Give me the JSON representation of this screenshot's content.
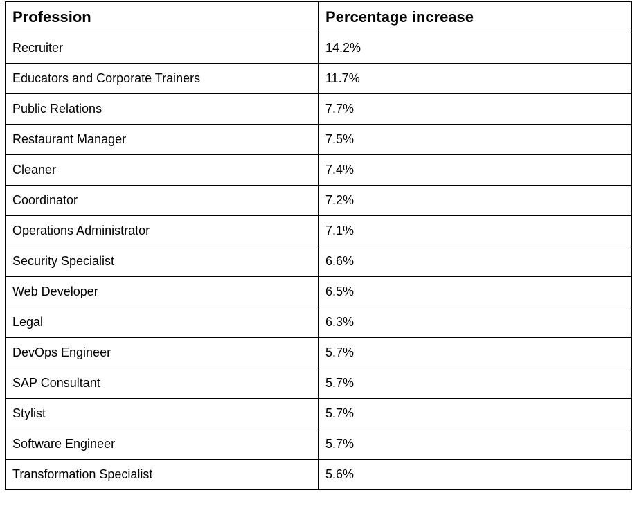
{
  "table": {
    "headers": [
      "Profession",
      "Percentage increase"
    ],
    "rows": [
      [
        "Recruiter",
        "14.2%"
      ],
      [
        "Educators and Corporate Trainers",
        "11.7%"
      ],
      [
        "Public Relations",
        "7.7%"
      ],
      [
        "Restaurant Manager",
        "7.5%"
      ],
      [
        "Cleaner",
        "7.4%"
      ],
      [
        "Coordinator",
        "7.2%"
      ],
      [
        "Operations Administrator",
        "7.1%"
      ],
      [
        "Security Specialist",
        "6.6%"
      ],
      [
        "Web Developer",
        "6.5%"
      ],
      [
        "Legal",
        "6.3%"
      ],
      [
        "DevOps Engineer",
        "5.7%"
      ],
      [
        "SAP Consultant",
        "5.7%"
      ],
      [
        "Stylist",
        "5.7%"
      ],
      [
        "Software Engineer",
        "5.7%"
      ],
      [
        "Transformation Specialist",
        "5.6%"
      ]
    ]
  }
}
